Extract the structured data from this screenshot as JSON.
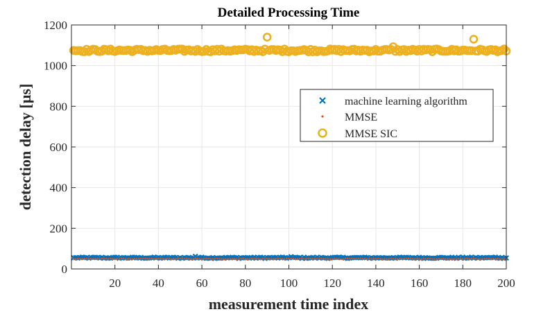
{
  "chart_data": {
    "type": "scatter",
    "title": "Detailed Processing Time",
    "xlabel": "measurement time index",
    "ylabel": "detection delay [µs]",
    "xlim": [
      0,
      200
    ],
    "ylim": [
      0,
      1200
    ],
    "xticks": [
      20,
      40,
      60,
      80,
      100,
      120,
      140,
      160,
      180,
      200
    ],
    "yticks": [
      0,
      200,
      400,
      600,
      800,
      1000,
      1200
    ],
    "grid": true,
    "legend_position": "center-right",
    "series": [
      {
        "name": "machine learning algorithm",
        "marker": "x",
        "color": "#0072BD",
        "baseline": 55,
        "points": [
          [
            1,
            55
          ],
          [
            57,
            62
          ],
          [
            101,
            60
          ],
          [
            148,
            56
          ],
          [
            195,
            58
          ],
          [
            200,
            54
          ]
        ]
      },
      {
        "name": "MMSE",
        "marker": "dot",
        "color": "#D95319",
        "baseline": 50,
        "points": [
          [
            1,
            50
          ],
          [
            100,
            50
          ],
          [
            200,
            50
          ]
        ]
      },
      {
        "name": "MMSE SIC",
        "marker": "o",
        "color": "#EDB120",
        "baseline": 1075,
        "points": [
          [
            1,
            1075
          ],
          [
            90,
            1140
          ],
          [
            148,
            1093
          ],
          [
            185,
            1130
          ],
          [
            200,
            1072
          ]
        ]
      }
    ]
  }
}
